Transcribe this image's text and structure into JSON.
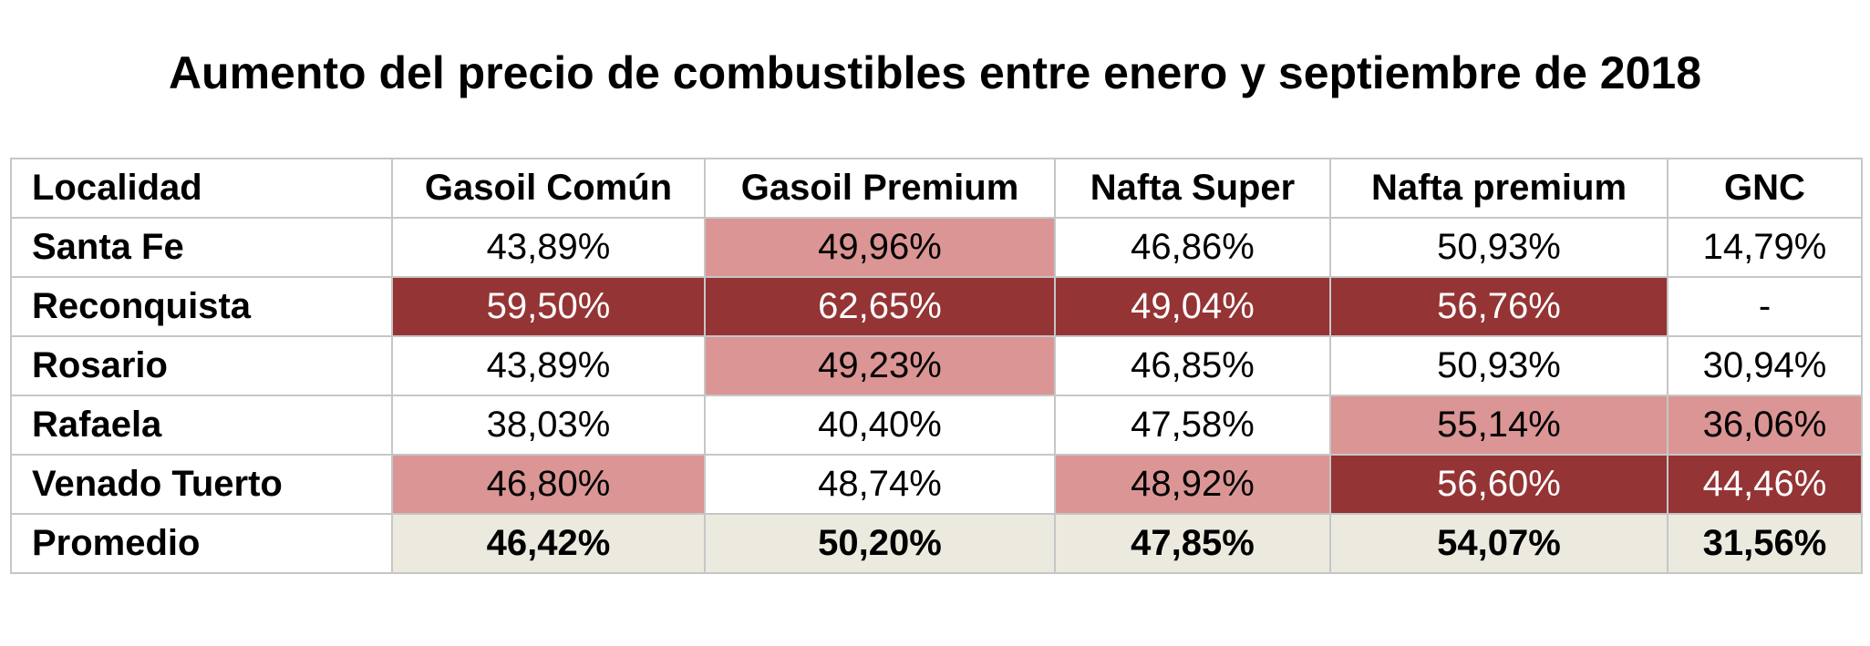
{
  "chart_data": {
    "type": "table",
    "title": "Aumento del precio de combustibles entre enero y septiembre de 2018",
    "columns": [
      "Localidad",
      "Gasoil Común",
      "Gasoil Premium",
      "Nafta Super",
      "Nafta premium",
      "GNC"
    ],
    "rows": [
      {
        "localidad": "Santa Fe",
        "values": [
          "43,89%",
          "49,96%",
          "46,86%",
          "50,93%",
          "14,79%"
        ],
        "highlight": [
          "none",
          "light",
          "none",
          "none",
          "none"
        ]
      },
      {
        "localidad": "Reconquista",
        "values": [
          "59,50%",
          "62,65%",
          "49,04%",
          "56,76%",
          "-"
        ],
        "highlight": [
          "dark",
          "dark",
          "dark",
          "dark",
          "none"
        ]
      },
      {
        "localidad": "Rosario",
        "values": [
          "43,89%",
          "49,23%",
          "46,85%",
          "50,93%",
          "30,94%"
        ],
        "highlight": [
          "none",
          "light",
          "none",
          "none",
          "none"
        ]
      },
      {
        "localidad": "Rafaela",
        "values": [
          "38,03%",
          "40,40%",
          "47,58%",
          "55,14%",
          "36,06%"
        ],
        "highlight": [
          "none",
          "none",
          "none",
          "light",
          "light"
        ]
      },
      {
        "localidad": "Venado Tuerto",
        "values": [
          "46,80%",
          "48,74%",
          "48,92%",
          "56,60%",
          "44,46%"
        ],
        "highlight": [
          "light",
          "none",
          "light",
          "dark",
          "dark"
        ]
      }
    ],
    "average": {
      "localidad": "Promedio",
      "values": [
        "46,42%",
        "50,20%",
        "47,85%",
        "54,07%",
        "31,56%"
      ]
    },
    "colors": {
      "light_highlight": "#da9594",
      "dark_highlight": "#953435",
      "average_background": "#eceadf",
      "border": "#c6c6c6"
    }
  }
}
